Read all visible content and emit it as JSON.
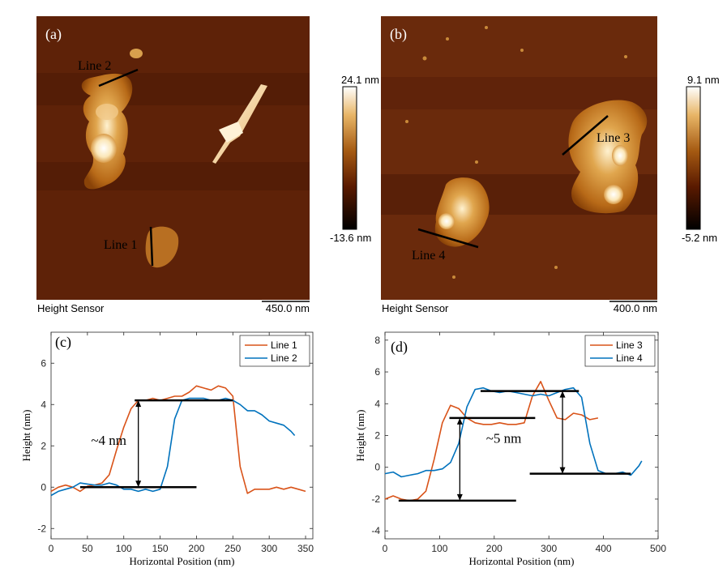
{
  "panels": {
    "a": {
      "label": "(a)",
      "footer_left": "Height Sensor",
      "scalebar": "450.0 nm",
      "colorbar_max": "24.1 nm",
      "colorbar_min": "-13.6 nm",
      "lines": [
        "Line 1",
        "Line 2"
      ]
    },
    "b": {
      "label": "(b)",
      "footer_left": "Height Sensor",
      "scalebar": "400.0 nm",
      "colorbar_max": "9.1 nm",
      "colorbar_min": "-5.2 nm",
      "lines": [
        "Line 3",
        "Line 4"
      ]
    },
    "c": {
      "label": "(c)",
      "annotation": "~4 nm"
    },
    "d": {
      "label": "(d)",
      "annotation": "~5 nm"
    }
  },
  "colors": {
    "line_orange": "#D95319",
    "line_blue": "#0072BD",
    "afm_dark": "#3a0e00"
  },
  "chart_data": [
    {
      "type": "line",
      "panel": "c",
      "xlabel": "Horizontal Position (nm)",
      "ylabel": "Height (nm)",
      "xlim": [
        0,
        360
      ],
      "ylim": [
        -2.5,
        7.5
      ],
      "xticks": [
        0,
        50,
        100,
        150,
        200,
        250,
        300,
        350
      ],
      "yticks": [
        -2,
        0,
        2,
        4,
        6
      ],
      "legend": "top-right",
      "series": [
        {
          "name": "Line 1",
          "color": "#D95319",
          "x": [
            0,
            10,
            20,
            30,
            40,
            50,
            60,
            70,
            80,
            90,
            100,
            110,
            120,
            130,
            140,
            150,
            160,
            170,
            180,
            190,
            200,
            210,
            220,
            230,
            240,
            250,
            260,
            270,
            280,
            290,
            300,
            310,
            320,
            330,
            340,
            350
          ],
          "y": [
            -0.2,
            0.0,
            0.1,
            0.0,
            -0.2,
            0.05,
            0.1,
            0.2,
            0.6,
            1.8,
            2.9,
            3.8,
            4.2,
            4.2,
            4.3,
            4.2,
            4.3,
            4.4,
            4.4,
            4.6,
            4.9,
            4.8,
            4.7,
            4.9,
            4.8,
            4.4,
            1.0,
            -0.3,
            -0.1,
            -0.1,
            -0.1,
            0.0,
            -0.1,
            0.0,
            -0.1,
            -0.2
          ]
        },
        {
          "name": "Line 2",
          "color": "#0072BD",
          "x": [
            0,
            10,
            20,
            30,
            40,
            50,
            60,
            70,
            80,
            90,
            100,
            110,
            120,
            130,
            140,
            150,
            160,
            170,
            180,
            190,
            200,
            210,
            220,
            230,
            240,
            250,
            260,
            270,
            280,
            290,
            300,
            310,
            320,
            330,
            335
          ],
          "y": [
            -0.4,
            -0.2,
            -0.1,
            0.0,
            0.2,
            0.15,
            0.1,
            0.1,
            0.2,
            0.1,
            -0.1,
            -0.1,
            -0.2,
            -0.1,
            -0.2,
            -0.1,
            1.0,
            3.3,
            4.2,
            4.3,
            4.3,
            4.3,
            4.2,
            4.2,
            4.3,
            4.2,
            4.0,
            3.7,
            3.7,
            3.5,
            3.2,
            3.1,
            3.0,
            2.7,
            2.5
          ]
        }
      ],
      "annotation": "~4 nm"
    },
    {
      "type": "line",
      "panel": "d",
      "xlabel": "Horizontal Position (nm)",
      "ylabel": "Height (nm)",
      "xlim": [
        0,
        500
      ],
      "ylim": [
        -4.5,
        8.5
      ],
      "xticks": [
        0,
        100,
        200,
        300,
        400,
        500
      ],
      "yticks": [
        -4,
        -2,
        0,
        2,
        4,
        6,
        8
      ],
      "legend": "top-right",
      "series": [
        {
          "name": "Line 3",
          "color": "#D95319",
          "x": [
            0,
            15,
            30,
            45,
            60,
            75,
            90,
            105,
            120,
            135,
            150,
            165,
            180,
            195,
            210,
            225,
            240,
            255,
            270,
            285,
            300,
            315,
            330,
            345,
            360,
            375,
            390
          ],
          "y": [
            -2.0,
            -1.8,
            -2.0,
            -2.1,
            -2.0,
            -1.5,
            0.5,
            2.8,
            3.9,
            3.7,
            3.1,
            2.8,
            2.7,
            2.7,
            2.8,
            2.7,
            2.7,
            2.8,
            4.5,
            5.4,
            4.2,
            3.1,
            3.0,
            3.4,
            3.3,
            3.0,
            3.1
          ]
        },
        {
          "name": "Line 4",
          "color": "#0072BD",
          "x": [
            0,
            15,
            30,
            45,
            60,
            75,
            90,
            105,
            120,
            135,
            150,
            165,
            180,
            195,
            210,
            225,
            240,
            255,
            270,
            285,
            300,
            315,
            330,
            345,
            360,
            375,
            390,
            405,
            420,
            435,
            450,
            465,
            470
          ],
          "y": [
            -0.4,
            -0.3,
            -0.6,
            -0.5,
            -0.4,
            -0.2,
            -0.2,
            -0.1,
            0.3,
            1.5,
            3.8,
            4.9,
            5.0,
            4.8,
            4.7,
            4.8,
            4.7,
            4.6,
            4.5,
            4.6,
            4.5,
            4.7,
            4.9,
            5.0,
            4.4,
            1.5,
            -0.2,
            -0.4,
            -0.4,
            -0.3,
            -0.5,
            0.1,
            0.4
          ]
        }
      ],
      "annotation": "~5 nm"
    }
  ]
}
